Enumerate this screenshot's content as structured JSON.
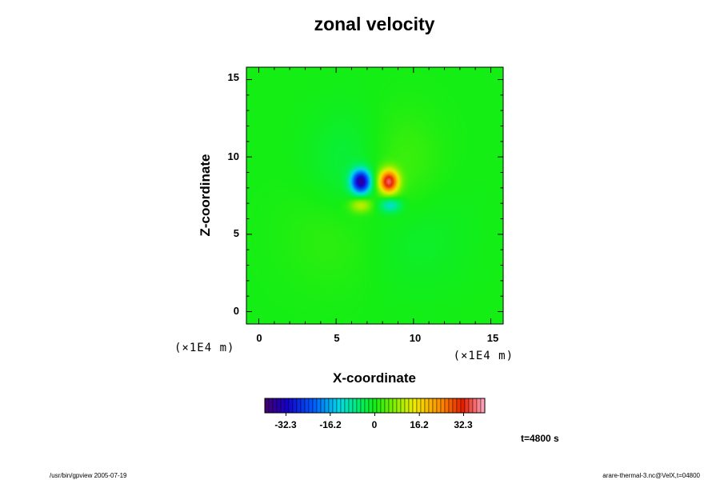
{
  "chart_data": {
    "type": "heatmap",
    "title": "zonal velocity",
    "xlabel": "X-coordinate",
    "ylabel": "Z-coordinate",
    "x_unit": "(×1E4 m)",
    "y_unit": "(×1E4 m)",
    "xlim": [
      -0.8,
      15.8
    ],
    "ylim": [
      -0.8,
      15.8
    ],
    "x_ticks": [
      "0",
      "5",
      "10",
      "15"
    ],
    "y_ticks": [
      "0",
      "5",
      "10",
      "15"
    ],
    "x_tick_values": [
      0,
      5,
      10,
      15
    ],
    "y_tick_values": [
      0,
      5,
      10,
      15
    ],
    "colorbar": {
      "min": -40,
      "max": 40,
      "tick_labels": [
        "-32.3",
        "-16.2",
        "0",
        "16.2",
        "32.3"
      ],
      "tick_values": [
        -32.3,
        -16.2,
        0,
        16.2,
        32.3
      ],
      "palette": "rainbow (purple-blue-cyan-green-yellow-red-pink)"
    },
    "features": [
      {
        "x": 6.6,
        "z": 8.4,
        "value": -35,
        "sx": 0.45,
        "sz": 0.55
      },
      {
        "x": 8.4,
        "z": 8.4,
        "value": 35,
        "sx": 0.45,
        "sz": 0.55
      },
      {
        "x": 6.6,
        "z": 6.9,
        "value": 12,
        "sx": 0.5,
        "sz": 0.35
      },
      {
        "x": 8.5,
        "z": 6.9,
        "value": -12,
        "sx": 0.5,
        "sz": 0.35
      },
      {
        "x": 5.8,
        "z": 9.5,
        "value": -3,
        "sx": 1.8,
        "sz": 2.4
      },
      {
        "x": 9.2,
        "z": 9.5,
        "value": 3,
        "sx": 1.8,
        "sz": 2.4
      },
      {
        "x": 5.2,
        "z": 5.0,
        "value": 2,
        "sx": 2.5,
        "sz": 2.5
      },
      {
        "x": 9.8,
        "z": 5.0,
        "value": -2,
        "sx": 2.5,
        "sz": 2.5
      }
    ]
  },
  "time_label": "t=4800 s",
  "footer": {
    "left": "/usr/bin/gpview 2005-07-19",
    "right": "arare-thermal-3.nc@VelX,t=04800"
  }
}
